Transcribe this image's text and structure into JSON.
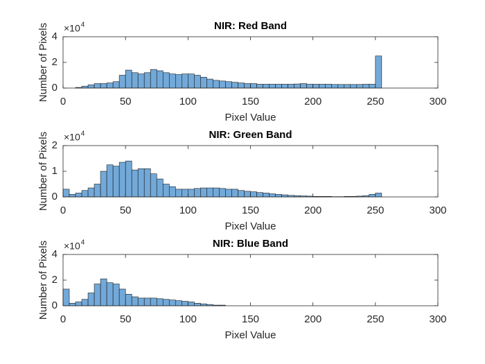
{
  "chart_data": [
    {
      "type": "histogram",
      "title": "NIR: Red Band",
      "x_label": "Pixel Value",
      "y_label": "Number of Pixels",
      "y_exponent_base": "×10",
      "y_exponent": "4",
      "color": "#72a9d9",
      "bins": [
        0,
        5,
        10,
        15,
        20,
        25,
        30,
        35,
        40,
        45,
        50,
        55,
        60,
        65,
        70,
        75,
        80,
        85,
        90,
        95,
        100,
        105,
        110,
        115,
        120,
        125,
        130,
        135,
        140,
        145,
        150,
        155,
        160,
        165,
        170,
        175,
        180,
        185,
        190,
        195,
        200,
        205,
        210,
        215,
        220,
        225,
        230,
        235,
        240,
        245,
        250,
        255
      ],
      "values": [
        0,
        0,
        0.05,
        0.15,
        0.25,
        0.35,
        0.35,
        0.4,
        0.5,
        1.0,
        1.4,
        1.2,
        1.1,
        1.2,
        1.45,
        1.35,
        1.2,
        1.1,
        1.05,
        1.1,
        1.1,
        1.0,
        0.85,
        0.7,
        0.6,
        0.55,
        0.5,
        0.45,
        0.4,
        0.35,
        0.35,
        0.3,
        0.3,
        0.3,
        0.3,
        0.3,
        0.3,
        0.32,
        0.35,
        0.3,
        0.3,
        0.3,
        0.3,
        0.28,
        0.28,
        0.28,
        0.28,
        0.28,
        0.3,
        0.3,
        2.5
      ],
      "xlim": [
        0,
        300
      ],
      "xticks": [
        0,
        50,
        100,
        150,
        200,
        250,
        300
      ],
      "ylim": [
        0,
        4
      ],
      "yticks": [
        0,
        2,
        4
      ]
    },
    {
      "type": "histogram",
      "title": "NIR: Green Band",
      "x_label": "Pixel Value",
      "y_label": "Number of Pixels",
      "y_exponent_base": "×10",
      "y_exponent": "4",
      "color": "#72a9d9",
      "bins": [
        0,
        5,
        10,
        15,
        20,
        25,
        30,
        35,
        40,
        45,
        50,
        55,
        60,
        65,
        70,
        75,
        80,
        85,
        90,
        95,
        100,
        105,
        110,
        115,
        120,
        125,
        130,
        135,
        140,
        145,
        150,
        155,
        160,
        165,
        170,
        175,
        180,
        185,
        190,
        195,
        200,
        205,
        210,
        215,
        220,
        225,
        230,
        235,
        240,
        245,
        250,
        255
      ],
      "values": [
        0.3,
        0.1,
        0.15,
        0.25,
        0.35,
        0.5,
        1.0,
        1.25,
        1.2,
        1.35,
        1.4,
        1.05,
        1.1,
        1.1,
        0.9,
        0.7,
        0.5,
        0.4,
        0.3,
        0.3,
        0.3,
        0.33,
        0.35,
        0.35,
        0.35,
        0.33,
        0.3,
        0.3,
        0.25,
        0.22,
        0.2,
        0.17,
        0.15,
        0.12,
        0.1,
        0.08,
        0.06,
        0.05,
        0.04,
        0.03,
        0.02,
        0.02,
        0.02,
        0.01,
        0.01,
        0.02,
        0.02,
        0.03,
        0.05,
        0.1,
        0.15
      ],
      "xlim": [
        0,
        300
      ],
      "xticks": [
        0,
        50,
        100,
        150,
        200,
        250,
        300
      ],
      "ylim": [
        0,
        2
      ],
      "yticks": [
        0,
        1,
        2
      ]
    },
    {
      "type": "histogram",
      "title": "NIR: Blue Band",
      "x_label": "Pixel Value",
      "y_label": "Number of Pixels",
      "y_exponent_base": "×10",
      "y_exponent": "4",
      "color": "#72a9d9",
      "bins": [
        0,
        5,
        10,
        15,
        20,
        25,
        30,
        35,
        40,
        45,
        50,
        55,
        60,
        65,
        70,
        75,
        80,
        85,
        90,
        95,
        100,
        105,
        110,
        115,
        120,
        125,
        130,
        135,
        140,
        145,
        150,
        155,
        160,
        165,
        170,
        175,
        180,
        185,
        190,
        195,
        200,
        205,
        210,
        215,
        220,
        225,
        230,
        235,
        240,
        245,
        250,
        255
      ],
      "values": [
        1.3,
        0.2,
        0.3,
        0.5,
        1.0,
        1.7,
        2.1,
        1.8,
        1.7,
        1.3,
        0.9,
        0.7,
        0.6,
        0.6,
        0.6,
        0.55,
        0.5,
        0.45,
        0.4,
        0.35,
        0.3,
        0.2,
        0.15,
        0.1,
        0.05,
        0.05,
        0,
        0,
        0,
        0,
        0,
        0,
        0,
        0,
        0,
        0,
        0,
        0,
        0,
        0,
        0,
        0,
        0,
        0,
        0,
        0,
        0,
        0,
        0,
        0,
        0
      ],
      "xlim": [
        0,
        300
      ],
      "xticks": [
        0,
        50,
        100,
        150,
        200,
        250,
        300
      ],
      "ylim": [
        0,
        4
      ],
      "yticks": [
        0,
        2,
        4
      ]
    }
  ]
}
